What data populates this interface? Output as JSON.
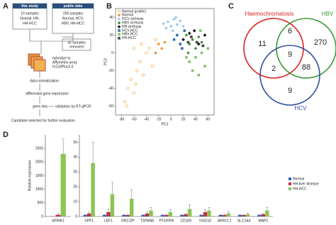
{
  "panel_labels": [
    "A",
    "B",
    "C",
    "D"
  ],
  "flowchart": {
    "this_study": {
      "title": "this study",
      "lines": [
        "19 samples",
        "Normal, HH,",
        "HH-HCC"
      ]
    },
    "public_data": {
      "title": "public data",
      "lines": [
        "259 samples",
        "Normal, HCV,",
        "HBV, HH-HCC"
      ]
    },
    "removed": [
      "42 samples",
      "removed"
    ],
    "hybridize": [
      "hybridize to",
      "Affymetrix array",
      "hr133Plus2.0"
    ],
    "normalization": "data normalization",
    "differential": "differential gene expression",
    "gene_lists": "gene lists",
    "validation": "validation by RT-qPCR",
    "candidate": "Candidate selected for further evaluation"
  },
  "venn": {
    "labels": [
      "Haemochromatosis",
      "HBV",
      "HCV"
    ],
    "regions": {
      "haemochromatosis_only": 11,
      "haemochromatosis_hbv": 6,
      "hbv_only": 270,
      "all_three": 9,
      "haemochromatosis_hcv": 2,
      "hbv_hcv": 88,
      "hcv_only": 9
    }
  },
  "chart_data": [
    {
      "type": "scatter",
      "x_label": "PC2",
      "y_label": "PC3",
      "xlim": [
        -90,
        70
      ],
      "ylim": [
        -70,
        50
      ],
      "xticks": [
        -80,
        -60,
        -40,
        -20,
        0,
        20,
        40,
        60
      ],
      "yticks": [
        -60,
        -40,
        -20,
        0,
        20,
        40
      ],
      "legend": "upper-left",
      "series": [
        {
          "name": "Normal (public)",
          "color": "#efaa45",
          "marker": "open-circle",
          "x": [
            -75,
            -70,
            -65,
            -60,
            -55,
            -50,
            -45,
            -40,
            -35,
            -48,
            -30,
            -25,
            -60,
            -72,
            -58
          ],
          "y": [
            -55,
            -40,
            -30,
            -45,
            -20,
            -10,
            -25,
            0,
            5,
            10,
            -15,
            15,
            5,
            -60,
            -35
          ]
        },
        {
          "name": "Normal",
          "color": "#e8962a",
          "marker": "circle",
          "x": [
            -20,
            -15,
            -25,
            -10
          ],
          "y": [
            10,
            5,
            0,
            12
          ]
        },
        {
          "name": "HCV cirrhosis",
          "color": "#9cc8ea",
          "marker": "circle",
          "x": [
            -5,
            0,
            5,
            10,
            -8,
            15,
            3,
            -12,
            8,
            20
          ],
          "y": [
            35,
            30,
            38,
            32,
            28,
            36,
            25,
            33,
            40,
            30
          ]
        },
        {
          "name": "HBV cirrhosis",
          "color": "#3f8f3a",
          "marker": "circle",
          "x": [
            25,
            30,
            35,
            40,
            45,
            50,
            28
          ],
          "y": [
            20,
            10,
            15,
            5,
            18,
            12,
            0
          ]
        },
        {
          "name": "HH cirrhosis",
          "color": "#111111",
          "marker": "diamond",
          "x": [
            20,
            30,
            38,
            45,
            55
          ],
          "y": [
            15,
            22,
            25,
            10,
            20
          ]
        },
        {
          "name": "HCV-HCC",
          "color": "#3a6fb8",
          "marker": "square",
          "x": [
            10,
            15,
            22,
            5,
            18
          ],
          "y": [
            20,
            10,
            25,
            15,
            5
          ]
        },
        {
          "name": "HBV-HCC",
          "color": "#86c464",
          "marker": "square",
          "x": [
            30,
            40,
            50,
            55,
            35,
            45,
            60,
            25,
            48
          ],
          "y": [
            -10,
            -5,
            0,
            -15,
            -20,
            -25,
            5,
            -5,
            25
          ]
        },
        {
          "name": "HH-HCC",
          "color": "#444444",
          "marker": "square",
          "x": [
            33,
            42,
            52,
            28
          ],
          "y": [
            18,
            12,
            8,
            12
          ]
        }
      ]
    },
    {
      "type": "bar",
      "y_label": "Relative expression",
      "categories": [
        "SPINK1"
      ],
      "ylim": [
        0,
        3000
      ],
      "yticks": [
        0,
        500,
        1000,
        1500,
        2000,
        2500
      ],
      "series": [
        {
          "color": "#3a5fc0",
          "values": [
            1
          ],
          "errors": [
            0.5
          ]
        },
        {
          "color": "#c0304a",
          "values": [
            60
          ],
          "errors": [
            30
          ]
        },
        {
          "color": "#8cc455",
          "values": [
            2300
          ],
          "errors": [
            550
          ]
        }
      ]
    },
    {
      "type": "bar",
      "categories": [
        "SPP1",
        "LEF1",
        "OR2J2P",
        "TSPAN8",
        "PTGFRN",
        "CD109",
        "VSIG10",
        "AKR1C1",
        "SLC1A4",
        "MAP2"
      ],
      "ylim": [
        0,
        55
      ],
      "yticks": [
        0,
        10,
        20,
        30,
        40,
        50
      ],
      "legend": "right",
      "series": [
        {
          "name": "Normal",
          "color": "#3a5fc0",
          "values": [
            1,
            1,
            1,
            1,
            1,
            1,
            1,
            1,
            1,
            1
          ],
          "errors": [
            0.3,
            0.3,
            0.3,
            0.3,
            0.3,
            0.3,
            0.3,
            0.3,
            0.3,
            0.3
          ]
        },
        {
          "name": "HH-liver disease",
          "color": "#c0304a",
          "values": [
            2,
            3,
            1,
            2,
            1,
            1.5,
            3,
            1,
            1,
            1.5
          ],
          "errors": [
            1,
            2,
            0.5,
            1,
            0.5,
            0.5,
            1.5,
            0.5,
            0.5,
            0.5
          ]
        },
        {
          "name": "HH-HCC",
          "color": "#8cc455",
          "values": [
            36,
            15,
            12,
            4,
            3,
            5,
            4,
            2,
            1.5,
            4
          ],
          "errors": [
            14,
            8,
            6,
            2,
            1.5,
            3,
            2,
            1,
            0.8,
            2
          ]
        }
      ]
    }
  ]
}
